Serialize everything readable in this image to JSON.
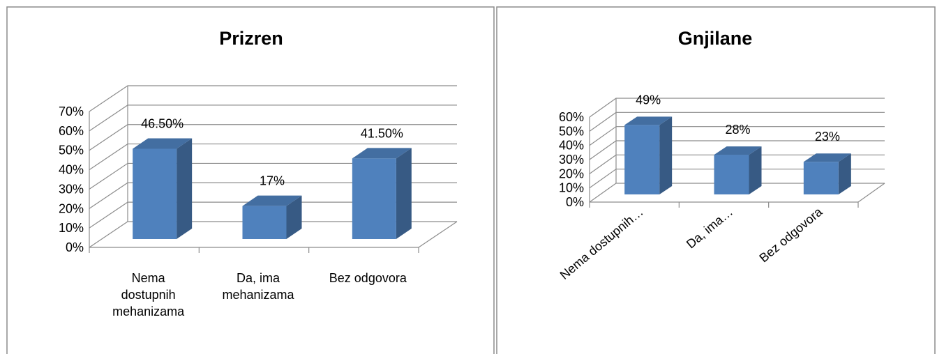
{
  "chart_data": [
    {
      "type": "bar",
      "title": "Prizren",
      "categories": [
        "Nema dostupnih mehanizama",
        "Da, ima mehanizama",
        "Bez odgovora"
      ],
      "values": [
        46.5,
        17,
        41.5
      ],
      "value_labels": [
        "46.50%",
        "17%",
        "41.50%"
      ],
      "color": "#4f81bd",
      "ylim": [
        0,
        70
      ],
      "yticks": [
        {
          "value": 0,
          "label": "0%"
        },
        {
          "value": 10,
          "label": "10%"
        },
        {
          "value": 20,
          "label": "20%"
        },
        {
          "value": 30,
          "label": "30%"
        },
        {
          "value": 40,
          "label": "40%"
        },
        {
          "value": 50,
          "label": "50%"
        },
        {
          "value": 60,
          "label": "60%"
        },
        {
          "value": 70,
          "label": "70%"
        }
      ],
      "grid": true
    },
    {
      "type": "bar",
      "title": "Gnjilane",
      "categories": [
        "Nema dostupnih…",
        "Da, ima…",
        "Bez odgovora"
      ],
      "values": [
        49,
        28,
        23
      ],
      "value_labels": [
        "49%",
        "28%",
        "23%"
      ],
      "color": "#4f81bd",
      "ylim": [
        0,
        60
      ],
      "yticks": [
        {
          "value": 0,
          "label": "0%"
        },
        {
          "value": 10,
          "label": "10%"
        },
        {
          "value": 20,
          "label": "20%"
        },
        {
          "value": 30,
          "label": "30%"
        },
        {
          "value": 40,
          "label": "40%"
        },
        {
          "value": 50,
          "label": "50%"
        },
        {
          "value": 60,
          "label": "60%"
        }
      ],
      "grid": true
    }
  ]
}
